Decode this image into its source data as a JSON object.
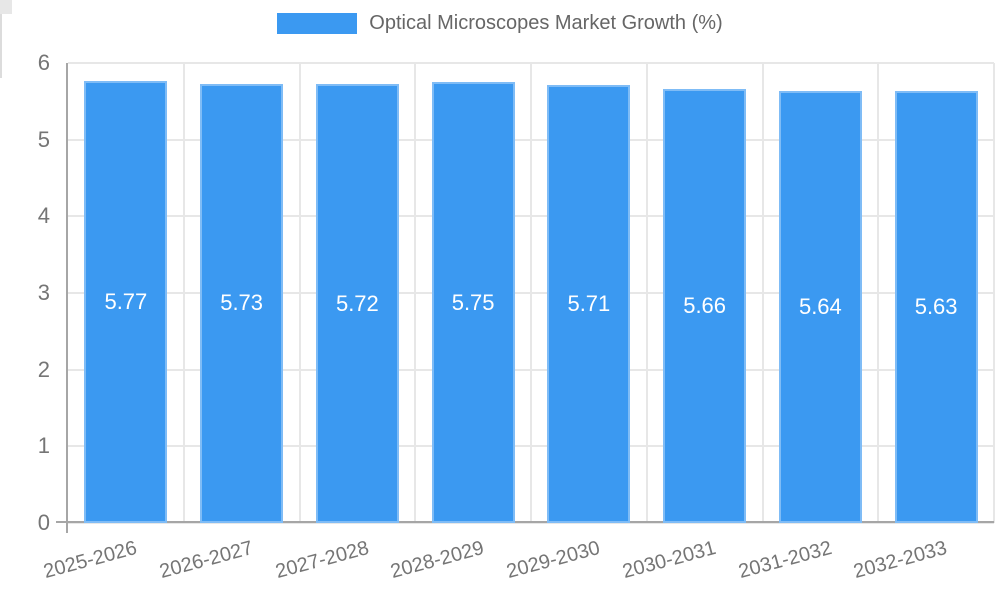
{
  "legend": {
    "label": "Optical Microscopes Market Growth (%)",
    "swatch_color": "#3b99f1"
  },
  "chart_data": {
    "type": "bar",
    "title": "Optical Microscopes Market Growth (%)",
    "categories": [
      "2025-2026",
      "2026-2027",
      "2027-2028",
      "2028-2029",
      "2029-2030",
      "2030-2031",
      "2031-2032",
      "2032-2033"
    ],
    "values": [
      5.77,
      5.73,
      5.72,
      5.75,
      5.71,
      5.66,
      5.64,
      5.63
    ],
    "value_labels": [
      "5.77",
      "5.73",
      "5.72",
      "5.75",
      "5.71",
      "5.66",
      "5.64",
      "5.63"
    ],
    "xlabel": "",
    "ylabel": "",
    "ylim": [
      0,
      6
    ],
    "yticks": [
      "0",
      "1",
      "2",
      "3",
      "4",
      "5",
      "6"
    ],
    "grid": true,
    "legend_position": "top",
    "bar_color": "#3b99f1",
    "value_label_color": "#ffffff",
    "grid_color": "#e7e7e7",
    "axis_color": "#a6a6a6",
    "tick_label_color": "#757575"
  }
}
